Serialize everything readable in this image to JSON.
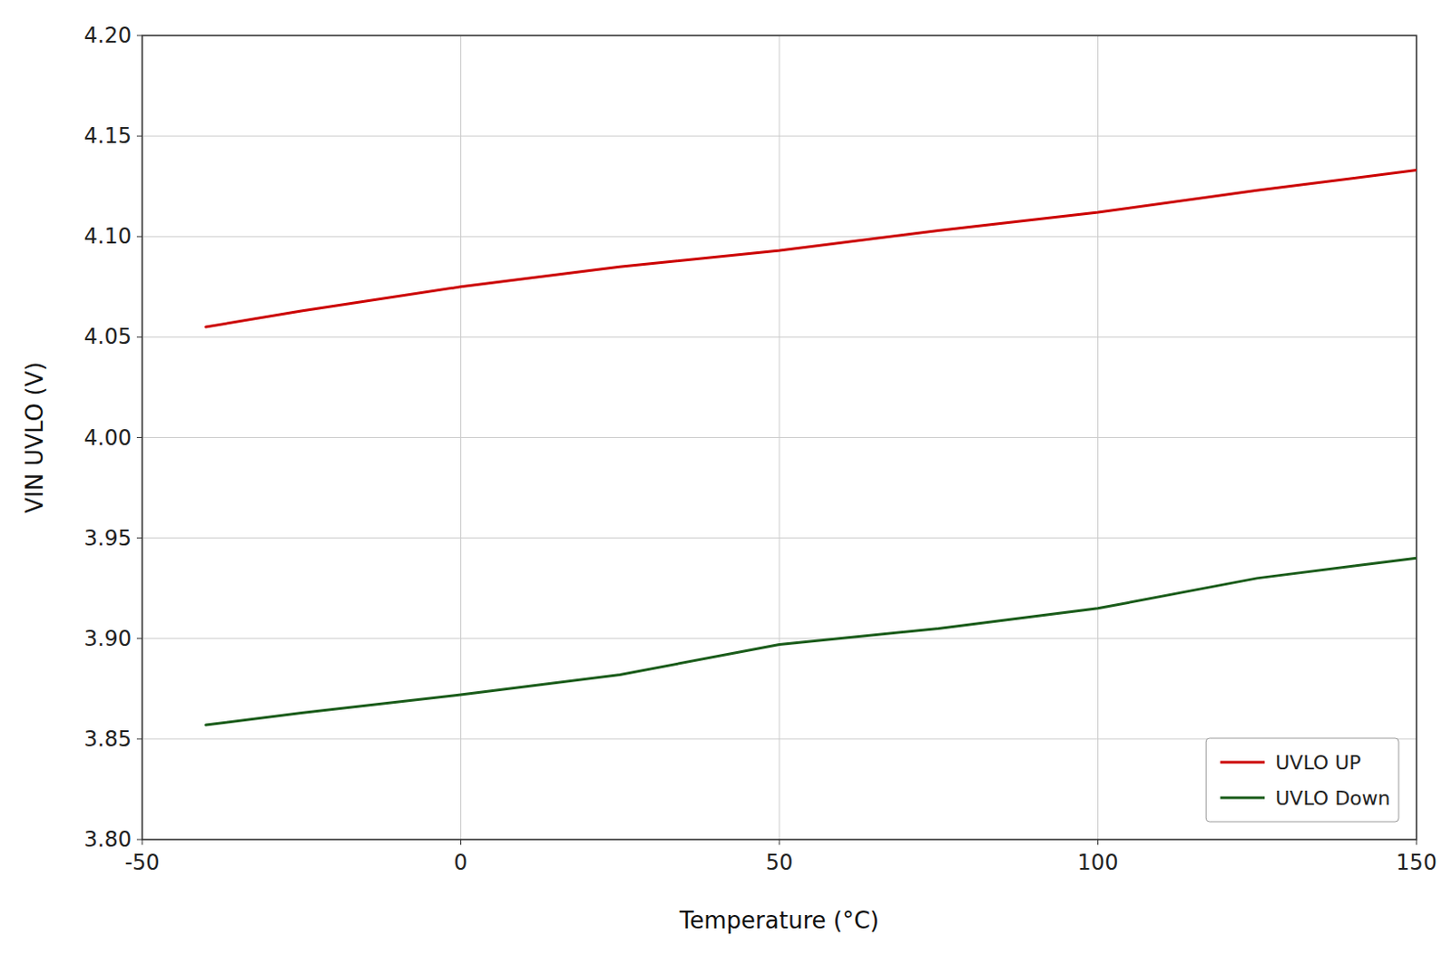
{
  "chart_data": {
    "type": "line",
    "x_label": "Temperature (°C)",
    "y_label": "VIN UVLO (V)",
    "x": [
      -40,
      -25,
      0,
      25,
      50,
      75,
      100,
      125,
      150
    ],
    "series": [
      {
        "name": "UVLO UP",
        "color": "#cc0000",
        "values": [
          4.055,
          4.063,
          4.075,
          4.085,
          4.093,
          4.103,
          4.112,
          4.123,
          4.133
        ]
      },
      {
        "name": "UVLO Down",
        "color": "#1a5c1a",
        "values": [
          3.857,
          3.863,
          3.872,
          3.882,
          3.897,
          3.905,
          3.915,
          3.93,
          3.94
        ]
      }
    ],
    "xlim": [
      -50,
      150
    ],
    "ylim": [
      3.8,
      4.2
    ],
    "xticks": [
      -50,
      0,
      50,
      100,
      150
    ],
    "yticks": [
      {
        "value": 3.8,
        "label": "3.80"
      },
      3.85,
      {
        "value": 3.9,
        "label": "3.90"
      },
      3.95,
      {
        "value": 4.0,
        "label": "4.00"
      },
      4.05,
      {
        "value": 4.1,
        "label": "4.10"
      },
      4.15,
      {
        "value": 4.2,
        "label": "4.20"
      }
    ],
    "grid": true,
    "legend": "lower right"
  }
}
